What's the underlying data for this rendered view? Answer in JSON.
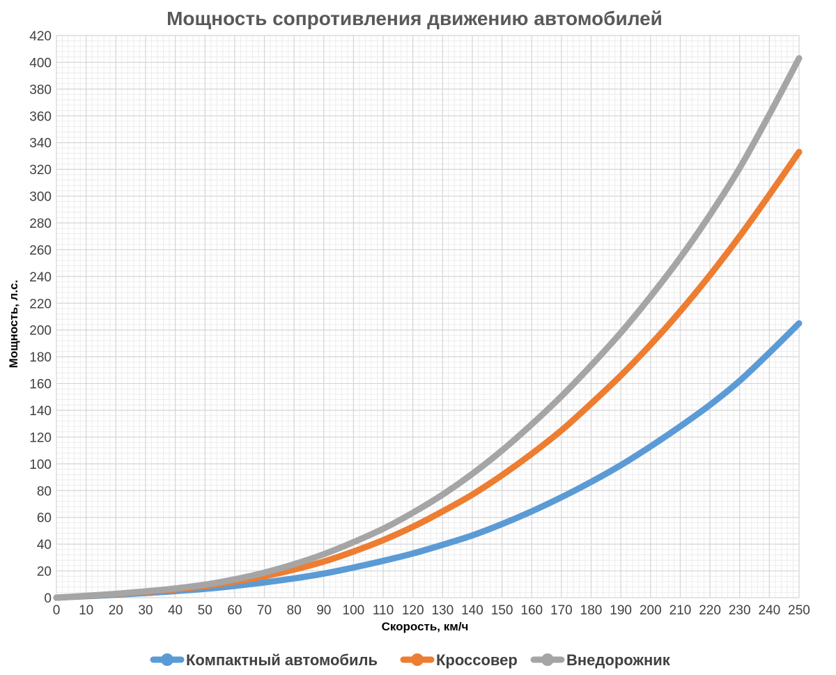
{
  "chart_data": {
    "type": "line",
    "title": "Мощность сопротивления движению автомобилей",
    "xlabel": "Скорость, км/ч",
    "ylabel": "Мощность, л.с.",
    "xlim": [
      0,
      250
    ],
    "ylim": [
      0,
      420
    ],
    "x_ticks": [
      "0",
      "10",
      "20",
      "30",
      "40",
      "50",
      "60",
      "70",
      "80",
      "90",
      "100",
      "110",
      "120",
      "130",
      "140",
      "150",
      "160",
      "170",
      "180",
      "190",
      "200",
      "210",
      "220",
      "230",
      "240",
      "250"
    ],
    "y_ticks": [
      "0",
      "20",
      "40",
      "60",
      "80",
      "100",
      "120",
      "140",
      "160",
      "180",
      "200",
      "220",
      "240",
      "260",
      "280",
      "300",
      "320",
      "340",
      "360",
      "380",
      "400",
      "420"
    ],
    "grid": true,
    "legend_position": "bottom",
    "x": [
      0,
      10,
      20,
      30,
      40,
      50,
      60,
      70,
      80,
      90,
      100,
      110,
      120,
      130,
      140,
      150,
      160,
      170,
      180,
      190,
      200,
      210,
      220,
      230,
      240,
      250
    ],
    "series": [
      {
        "name": "Компактный автомобиль",
        "color": "#5B9BD5",
        "values": [
          0,
          1.1,
          2.2,
          3.5,
          4.9,
          6.6,
          8.8,
          11.4,
          14.4,
          18,
          22.5,
          27.5,
          33,
          39.5,
          46.5,
          55,
          64.5,
          75,
          86.5,
          99,
          113,
          128,
          144,
          162,
          183,
          205
        ]
      },
      {
        "name": "Кроссовер",
        "color": "#ED7D31",
        "values": [
          0,
          1.3,
          2.7,
          4.3,
          6.2,
          8.7,
          12,
          16,
          21,
          27,
          34.5,
          43,
          53,
          64.5,
          77,
          91.5,
          107.5,
          125,
          145,
          166,
          189,
          214,
          241,
          270,
          301,
          333
        ]
      },
      {
        "name": "Внедорожник",
        "color": "#A5A5A5",
        "values": [
          0,
          1.4,
          2.9,
          4.7,
          6.9,
          9.7,
          13.7,
          18.7,
          25,
          32.5,
          41.5,
          51.5,
          63.5,
          77,
          92.5,
          110,
          129.5,
          150.5,
          173.5,
          198,
          225,
          254,
          286,
          321,
          361,
          403
        ]
      }
    ]
  }
}
